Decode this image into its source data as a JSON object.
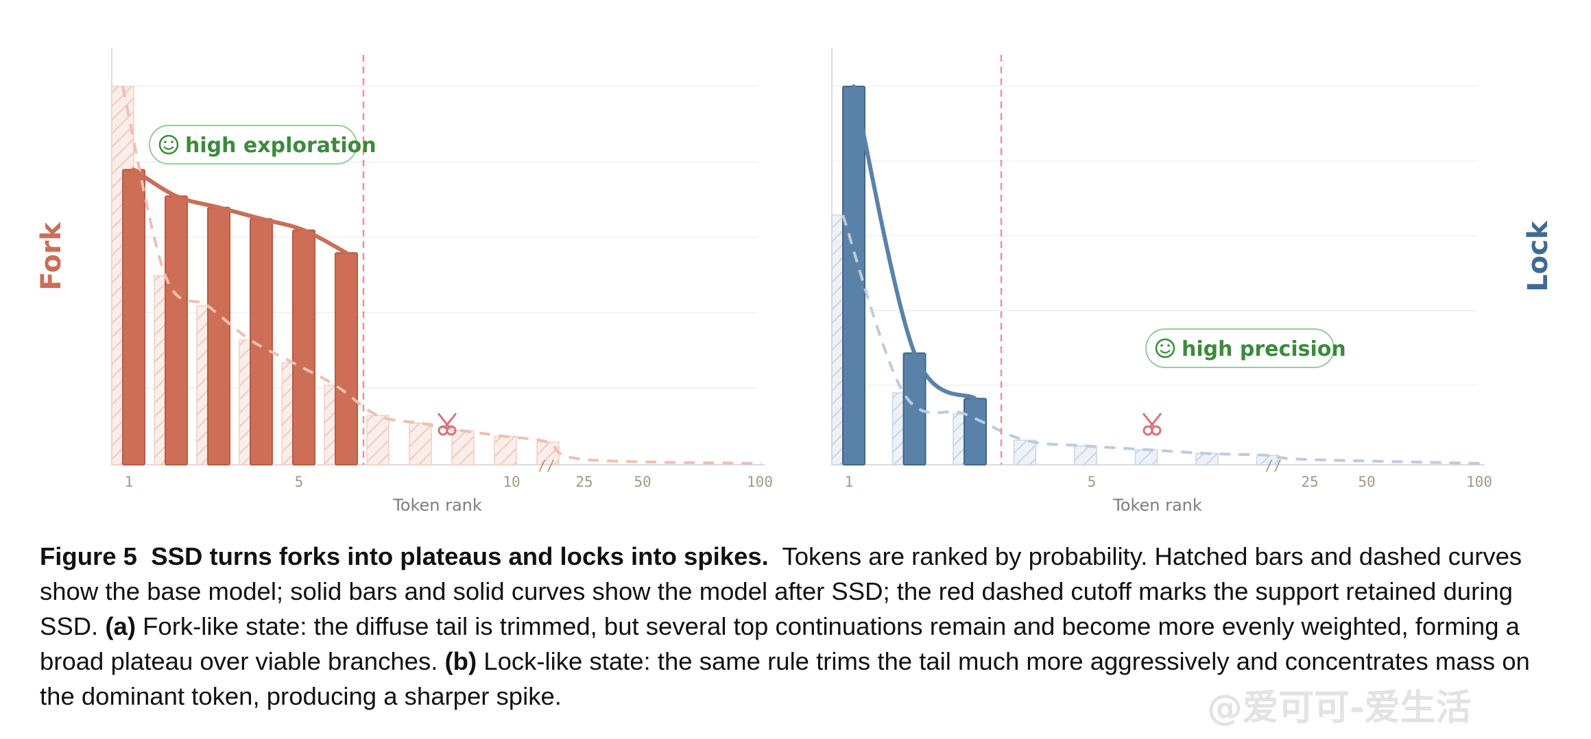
{
  "chart_data": [
    {
      "type": "bar",
      "panel": "a",
      "side_label": "Fork",
      "color": "#cf6e56",
      "xlabel": "Token rank",
      "x_ticks": [
        "1",
        "5",
        "10",
        "25",
        "50",
        "100"
      ],
      "x_break": "//",
      "cutoff_rank": 6,
      "annotation": "high exploration",
      "ranks": [
        1,
        2,
        3,
        4,
        5,
        6,
        7,
        8,
        9,
        10,
        11
      ],
      "series": [
        {
          "style": "hatched-dashed",
          "values": [
            1.0,
            0.5,
            0.42,
            0.33,
            0.27,
            0.21,
            0.13,
            0.11,
            0.09,
            0.075,
            0.06
          ]
        },
        {
          "style": "solid",
          "values": [
            0.78,
            0.71,
            0.68,
            0.65,
            0.62,
            0.56
          ]
        }
      ]
    },
    {
      "type": "bar",
      "panel": "b",
      "side_label": "Lock",
      "color": "#5a82a8",
      "xlabel": "Token rank",
      "x_ticks": [
        "1",
        "5",
        "25",
        "50",
        "100"
      ],
      "x_break": "//",
      "cutoff_rank": 3,
      "annotation": "high precision",
      "ranks": [
        1,
        2,
        3,
        4,
        5,
        6,
        7,
        8
      ],
      "series": [
        {
          "style": "hatched-dashed",
          "values": [
            0.66,
            0.19,
            0.135,
            0.065,
            0.05,
            0.04,
            0.03,
            0.025
          ]
        },
        {
          "style": "solid",
          "values": [
            1.0,
            0.295,
            0.175
          ]
        }
      ]
    }
  ],
  "caption": {
    "fig_label": "Figure 5",
    "title": "SSD turns forks into plateaus and locks into spikes.",
    "text1": "Tokens are ranked by probability. Hatched bars and dashed curves show the base model; solid bars and solid curves show the model after SSD; the red dashed cutoff marks the support retained during SSD.",
    "a_label": "(a)",
    "text2": "Fork-like state: the diffuse tail is trimmed, but several top continuations remain and become more evenly weighted, forming a broad plateau over viable branches.",
    "b_label": "(b)",
    "text3": "Lock-like state: the same rule trims the tail much more aggressively and concentrates mass on the dominant token, producing a sharper spike."
  },
  "watermark": "@爱可可-爱生活"
}
